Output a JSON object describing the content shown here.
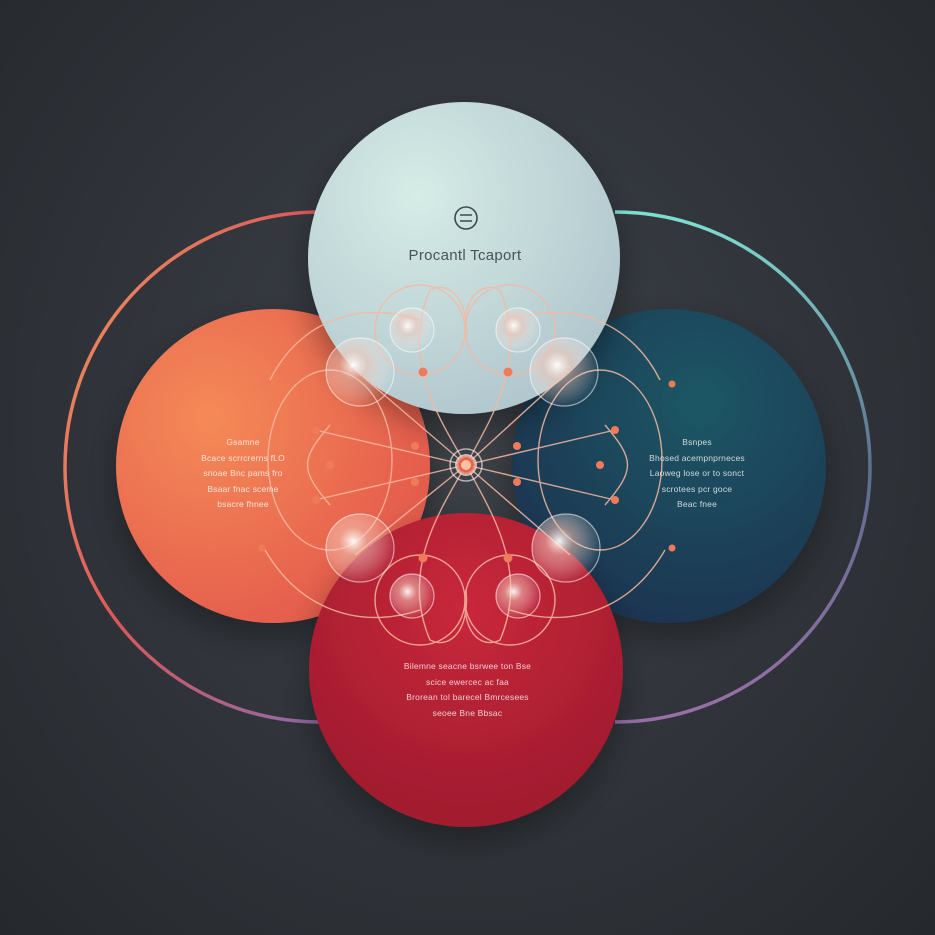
{
  "top": {
    "title": "Procantl Tcaport",
    "icon": "coin-icon"
  },
  "left": {
    "lines": [
      "Gsamne",
      "Bcace scrrcrerns fLO",
      "snoae Bnc pams fro",
      "Bsaar fnac sceme",
      "bsacre fhnee"
    ]
  },
  "right": {
    "lines": [
      "Bsnpes",
      "Bhosed acempnprneces",
      "Laoweg lose or to sonct",
      "scrotees pcr goce",
      "Beac fnee"
    ]
  },
  "bottom": {
    "lines": [
      "Bilemne seacne bsrwee ton Bse",
      "scice ewercec ac faa",
      "Brorean tol barecel Bmrcesees",
      "seoee Bne Bbsac"
    ]
  },
  "colors": {
    "background": "#2f3338",
    "top_circle": "#bfdbd8",
    "left_circle": "#ef6a4d",
    "right_circle": "#1e3d56",
    "bottom_circle": "#b8202f",
    "accent": "#f07a5a"
  }
}
